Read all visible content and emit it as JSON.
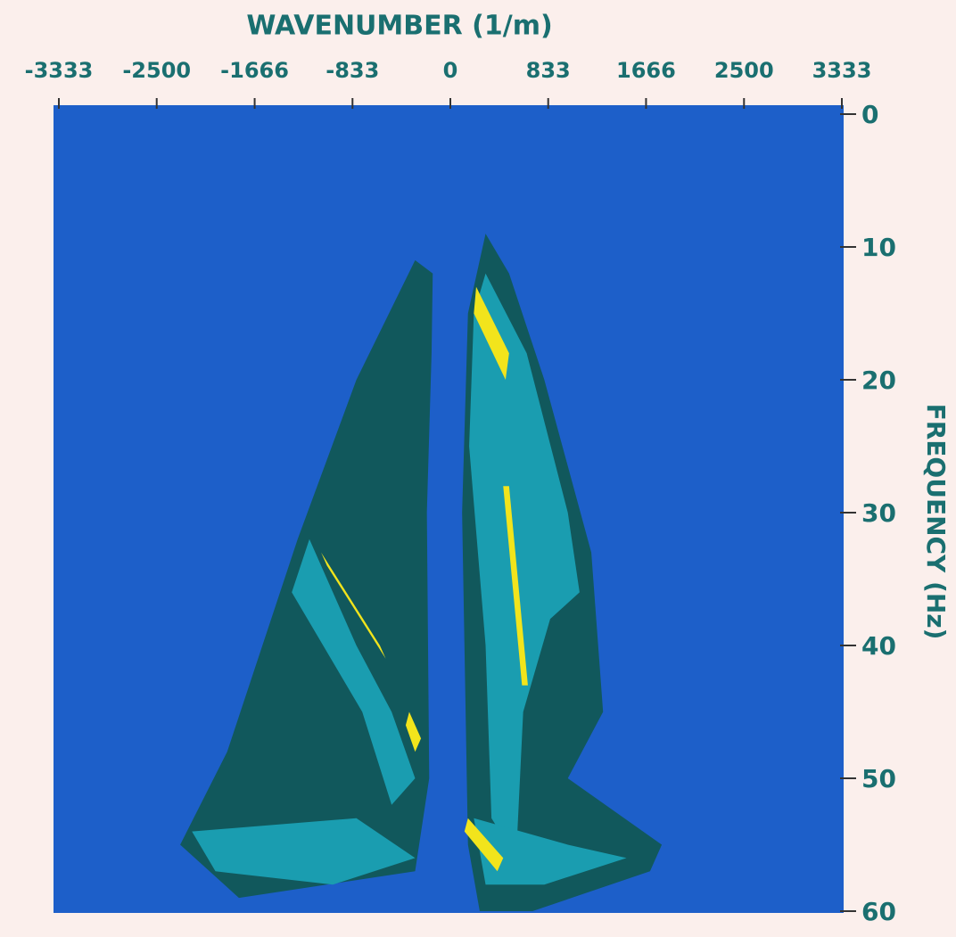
{
  "chart_data": {
    "type": "contour",
    "xlabel": "WAVENUMBER    (1/m)",
    "ylabel": "FREQUENCY (Hz)",
    "xlim": [
      -3333,
      3333
    ],
    "xticks": [
      -3333,
      -2500,
      -1666,
      -833,
      0,
      833,
      1666,
      2500,
      3333
    ],
    "ylim": [
      0,
      60
    ],
    "yticks": [
      0,
      10,
      20,
      30,
      40,
      50,
      60
    ],
    "y_inverted": true,
    "x_axis_position": "top",
    "y_axis_position": "right",
    "background_color": "#1d5fc9",
    "regions": [
      {
        "color": "#11585c",
        "x": [
          300,
          500,
          800,
          1200,
          1300,
          1000,
          1800,
          1700,
          700,
          250,
          150,
          100,
          150
        ],
        "y": [
          9,
          12,
          20,
          33,
          45,
          50,
          55,
          57,
          60,
          60,
          55,
          30,
          15
        ]
      },
      {
        "color": "#11585c",
        "x": [
          -150,
          -300,
          -800,
          -1300,
          -1600,
          -1900,
          -2300,
          -1800,
          -300,
          -180,
          -200,
          -160
        ],
        "y": [
          12,
          11,
          20,
          32,
          40,
          48,
          55,
          59,
          57,
          50,
          30,
          18
        ]
      },
      {
        "color": "#1a9db0",
        "x": [
          300,
          650,
          1000,
          1100,
          850,
          620,
          560,
          350,
          300,
          160,
          200
        ],
        "y": [
          12,
          18,
          30,
          36,
          38,
          45,
          56,
          53,
          40,
          25,
          15
        ]
      },
      {
        "color": "#1a9db0",
        "x": [
          -1200,
          -800,
          -500,
          -300,
          -500,
          -750,
          -1350
        ],
        "y": [
          32,
          40,
          45,
          50,
          52,
          45,
          36
        ]
      },
      {
        "color": "#1a9db0",
        "x": [
          -2200,
          -800,
          -300,
          -1000,
          -2000
        ],
        "y": [
          54,
          53,
          56,
          58,
          57
        ]
      },
      {
        "color": "#1a9db0",
        "x": [
          200,
          1000,
          1500,
          800,
          300
        ],
        "y": [
          53,
          55,
          56,
          58,
          58
        ]
      },
      {
        "color": "#f2e41c",
        "x": [
          -1100,
          -600,
          -550,
          -1050
        ],
        "y": [
          33,
          40,
          41,
          34
        ]
      },
      {
        "color": "#f2e41c",
        "x": [
          -350,
          -250,
          -300,
          -380
        ],
        "y": [
          45,
          47,
          48,
          46
        ]
      },
      {
        "color": "#f2e41c",
        "x": [
          220,
          500,
          470,
          200
        ],
        "y": [
          13,
          18,
          20,
          15
        ]
      },
      {
        "color": "#f2e41c",
        "x": [
          500,
          660,
          610,
          450
        ],
        "y": [
          28,
          43,
          43,
          28
        ]
      },
      {
        "color": "#f2e41c",
        "x": [
          150,
          450,
          400,
          120
        ],
        "y": [
          53,
          56,
          57,
          54
        ]
      }
    ]
  }
}
